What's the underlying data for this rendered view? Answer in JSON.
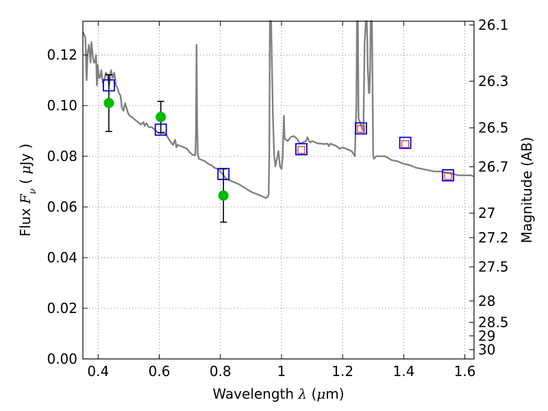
{
  "chart_data": {
    "type": "scatter",
    "xlabel": {
      "prefix": "Wavelength ",
      "symbol": "λ",
      "unit_open": " (",
      "unit_mu": "μ",
      "unit_close": "m)"
    },
    "ylabel": {
      "prefix": "Flux ",
      "symbol": "F",
      "sub": "ν",
      "unit_open": " ( ",
      "unit_mu": "μ",
      "unit_close": "Jy )"
    },
    "y2label": "Magnitude (AB)",
    "xlim": [
      0.35,
      1.63
    ],
    "ylim": [
      0.0,
      0.1333
    ],
    "grid": true,
    "xticks": [
      {
        "value": 0.4,
        "label": "0.4"
      },
      {
        "value": 0.6,
        "label": "0.6"
      },
      {
        "value": 0.8,
        "label": "0.8"
      },
      {
        "value": 1.0,
        "label": "1"
      },
      {
        "value": 1.2,
        "label": "1.2"
      },
      {
        "value": 1.4,
        "label": "1.4"
      },
      {
        "value": 1.6,
        "label": "1.6"
      }
    ],
    "yticks": [
      {
        "value": 0.0,
        "label": "0.00"
      },
      {
        "value": 0.02,
        "label": "0.02"
      },
      {
        "value": 0.04,
        "label": "0.04"
      },
      {
        "value": 0.06,
        "label": "0.06"
      },
      {
        "value": 0.08,
        "label": "0.08"
      },
      {
        "value": 0.1,
        "label": "0.10"
      },
      {
        "value": 0.12,
        "label": "0.12"
      }
    ],
    "y2ticks": [
      {
        "value": 26.1,
        "label": "26.1"
      },
      {
        "value": 26.3,
        "label": "26.3"
      },
      {
        "value": 26.5,
        "label": "26.5"
      },
      {
        "value": 26.7,
        "label": "26.7"
      },
      {
        "value": 27.0,
        "label": "27"
      },
      {
        "value": 27.2,
        "label": "27.2"
      },
      {
        "value": 27.5,
        "label": "27.5"
      },
      {
        "value": 28.0,
        "label": "28"
      },
      {
        "value": 28.5,
        "label": "28.5"
      },
      {
        "value": 29.0,
        "label": "29"
      },
      {
        "value": 30.0,
        "label": "30"
      }
    ],
    "colors": {
      "model": "#808080",
      "observed": "#00bb00",
      "model_phot": "#0000dd",
      "synthetic_phot": "#dd2222",
      "errorbar": "#000000",
      "grid": "#888888"
    },
    "series": [
      {
        "kind": "line",
        "x": [
          0.35,
          0.358,
          0.362,
          0.366,
          0.37,
          0.375,
          0.378,
          0.382,
          0.386,
          0.39,
          0.393,
          0.396,
          0.399,
          0.402,
          0.406,
          0.41,
          0.415,
          0.42,
          0.425,
          0.43,
          0.436,
          0.442,
          0.448,
          0.453,
          0.458,
          0.463,
          0.468,
          0.473,
          0.478,
          0.483,
          0.488,
          0.493,
          0.498,
          0.503,
          0.51,
          0.52,
          0.53,
          0.54,
          0.548,
          0.552,
          0.558,
          0.565,
          0.575,
          0.585,
          0.595,
          0.605,
          0.615,
          0.625,
          0.635,
          0.645,
          0.652,
          0.656,
          0.66,
          0.67,
          0.68,
          0.69,
          0.7,
          0.71,
          0.718,
          0.72,
          0.722,
          0.724,
          0.726,
          0.728,
          0.73,
          0.74,
          0.75,
          0.76,
          0.77,
          0.78,
          0.79,
          0.8,
          0.81,
          0.82,
          0.84,
          0.86,
          0.88,
          0.9,
          0.92,
          0.94,
          0.95,
          0.955,
          0.958,
          0.96,
          0.962,
          0.964,
          0.966,
          0.968,
          0.972,
          0.976,
          0.98,
          0.985,
          0.99,
          0.995,
          1.0,
          1.004,
          1.006,
          1.008,
          1.01,
          1.02,
          1.03,
          1.04,
          1.05,
          1.06,
          1.07,
          1.08,
          1.085,
          1.09,
          1.095,
          1.1,
          1.11,
          1.12,
          1.13,
          1.14,
          1.15,
          1.155,
          1.16,
          1.17,
          1.18,
          1.19,
          1.2,
          1.21,
          1.22,
          1.23,
          1.24,
          1.245,
          1.247,
          1.25,
          1.252,
          1.258,
          1.263,
          1.268,
          1.272,
          1.276,
          1.279,
          1.281,
          1.282,
          1.284,
          1.286,
          1.288,
          1.29,
          1.292,
          1.294,
          1.296,
          1.3,
          1.303,
          1.306,
          1.31,
          1.32,
          1.34,
          1.36,
          1.38,
          1.4,
          1.42,
          1.44,
          1.46,
          1.48,
          1.5,
          1.52,
          1.54,
          1.56,
          1.58,
          1.6,
          1.62,
          1.63
        ],
        "y": [
          0.129,
          0.127,
          0.11,
          0.121,
          0.124,
          0.117,
          0.125,
          0.12,
          0.117,
          0.117,
          0.12,
          0.108,
          0.116,
          0.111,
          0.111,
          0.114,
          0.109,
          0.11,
          0.113,
          0.112,
          0.108,
          0.114,
          0.111,
          0.113,
          0.108,
          0.107,
          0.105,
          0.104,
          0.099,
          0.098,
          0.101,
          0.099,
          0.097,
          0.096,
          0.0955,
          0.0945,
          0.0935,
          0.0925,
          0.0935,
          0.092,
          0.093,
          0.0915,
          0.0915,
          0.0905,
          0.0895,
          0.089,
          0.0895,
          0.088,
          0.086,
          0.0845,
          0.0865,
          0.0835,
          0.0845,
          0.084,
          0.0835,
          0.083,
          0.0815,
          0.0805,
          0.0805,
          0.09,
          0.124,
          0.093,
          0.081,
          0.08,
          0.079,
          0.0785,
          0.078,
          0.077,
          0.0765,
          0.0755,
          0.075,
          0.074,
          0.0725,
          0.071,
          0.07,
          0.069,
          0.0675,
          0.066,
          0.065,
          0.064,
          0.0635,
          0.064,
          0.065,
          0.08,
          0.1333,
          0.1333,
          0.1333,
          0.12,
          0.095,
          0.08,
          0.076,
          0.079,
          0.082,
          0.076,
          0.075,
          0.08,
          0.088,
          0.096,
          0.087,
          0.086,
          0.0875,
          0.088,
          0.087,
          0.085,
          0.0855,
          0.086,
          0.0875,
          0.086,
          0.0855,
          0.086,
          0.0855,
          0.085,
          0.085,
          0.0848,
          0.085,
          0.084,
          0.085,
          0.0845,
          0.084,
          0.083,
          0.0835,
          0.083,
          0.0825,
          0.082,
          0.08,
          0.1,
          0.1333,
          0.1333,
          0.095,
          0.093,
          0.091,
          0.09,
          0.125,
          0.1333,
          0.1333,
          0.125,
          0.115,
          0.11,
          0.105,
          0.105,
          0.115,
          0.1333,
          0.1333,
          0.1333,
          0.08,
          0.079,
          0.0795,
          0.08,
          0.08,
          0.08,
          0.0785,
          0.078,
          0.077,
          0.0765,
          0.0755,
          0.075,
          0.0745,
          0.074,
          0.074,
          0.0735,
          0.073,
          0.0725,
          0.0725,
          0.0725,
          0.072
        ]
      },
      {
        "kind": "points_with_error",
        "x": [
          0.435,
          0.605,
          0.81
        ],
        "y": [
          0.101,
          0.0955,
          0.0645
        ],
        "yerr": [
          0.0112,
          0.0062,
          0.0105
        ]
      },
      {
        "kind": "open_squares",
        "x": [
          0.435,
          0.605,
          0.81,
          1.065,
          1.26,
          1.405,
          1.545
        ],
        "y": [
          0.108,
          0.0905,
          0.073,
          0.0828,
          0.091,
          0.0853,
          0.0725
        ]
      },
      {
        "kind": "small_squares",
        "x": [
          1.065,
          1.26,
          1.405,
          1.545
        ],
        "y": [
          0.0825,
          0.0908,
          0.0848,
          0.0722
        ]
      }
    ]
  }
}
